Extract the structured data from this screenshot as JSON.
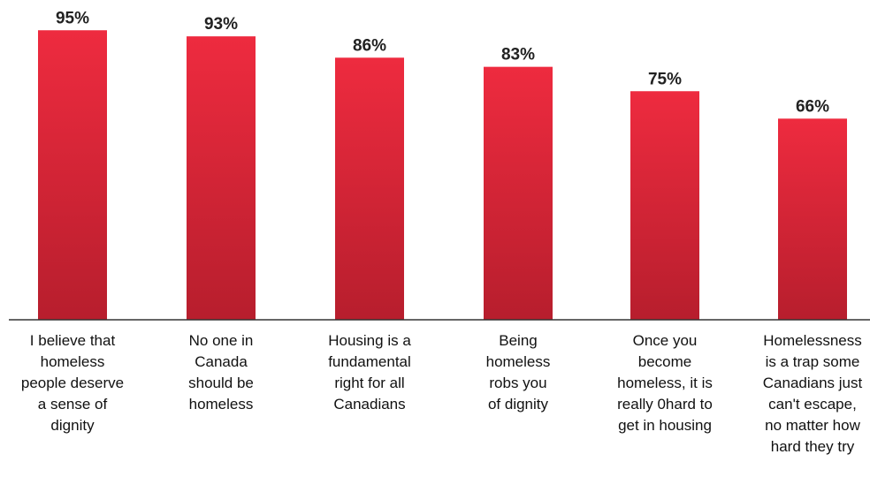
{
  "chart_data": {
    "type": "bar",
    "categories": [
      "I believe that\nhomeless\npeople deserve\na sense of\ndignity",
      "No one in\nCanada\nshould be\nhomeless",
      "Housing is a\nfundamental\nright for all\nCanadians",
      "Being\nhomeless\nrobs you\nof dignity",
      "Once you\nbecome\nhomeless, it is\nreally 0hard to\nget in housing",
      "Homelessness\nis a trap some\nCanadians just\ncan't escape,\nno matter how\nhard they try"
    ],
    "values": [
      95,
      93,
      86,
      83,
      75,
      66
    ],
    "value_labels": [
      "95%",
      "93%",
      "86%",
      "83%",
      "75%",
      "66%"
    ],
    "ylim": [
      0,
      100
    ],
    "grid": false,
    "legend": "none",
    "bar_color_top": "#ee2b3f",
    "bar_color_bottom": "#b71e2d",
    "axis_color": "#333333"
  }
}
